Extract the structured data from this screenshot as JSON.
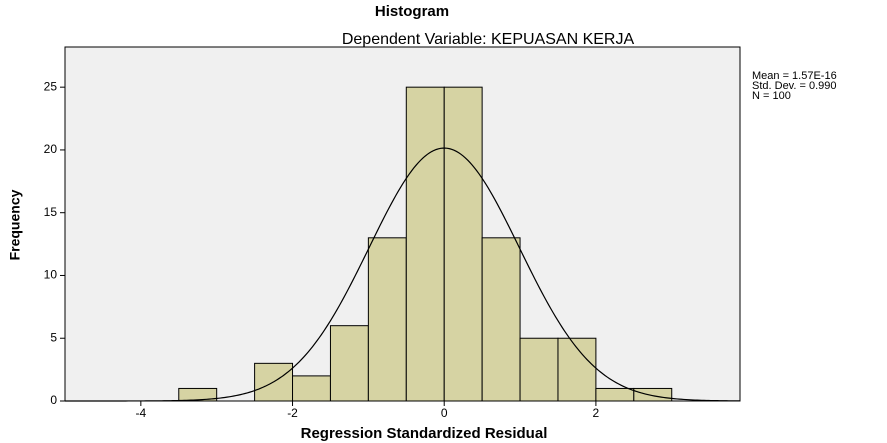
{
  "chart_data": {
    "type": "histogram",
    "title": "Histogram",
    "subtitle": "Dependent Variable: KEPUASAN KERJA",
    "xlabel": "Regression Standardized Residual",
    "ylabel": "Frequency",
    "bins": [
      -3.5,
      -3,
      -2.5,
      -2,
      -1.5,
      -1,
      -0.5,
      0,
      0.5,
      1,
      1.5,
      2,
      2.5,
      3
    ],
    "values": [
      1,
      0,
      3,
      2,
      6,
      13,
      25,
      25,
      13,
      5,
      5,
      1,
      1
    ],
    "color": "#d6d3a3",
    "xlim": [
      -5,
      3.9
    ],
    "xticks": [
      -4,
      -2,
      0,
      2
    ],
    "ylim": [
      0,
      28.2
    ],
    "yticks": [
      0,
      5,
      10,
      15,
      20,
      25
    ],
    "stats": {
      "mean": {
        "value": 1.57e-16,
        "label": "Mean = 1.57E-16"
      },
      "sd": {
        "value": 0.99,
        "label": "Std. Dev. = 0.990"
      },
      "n": {
        "value": 100,
        "label": "N = 100"
      }
    }
  }
}
